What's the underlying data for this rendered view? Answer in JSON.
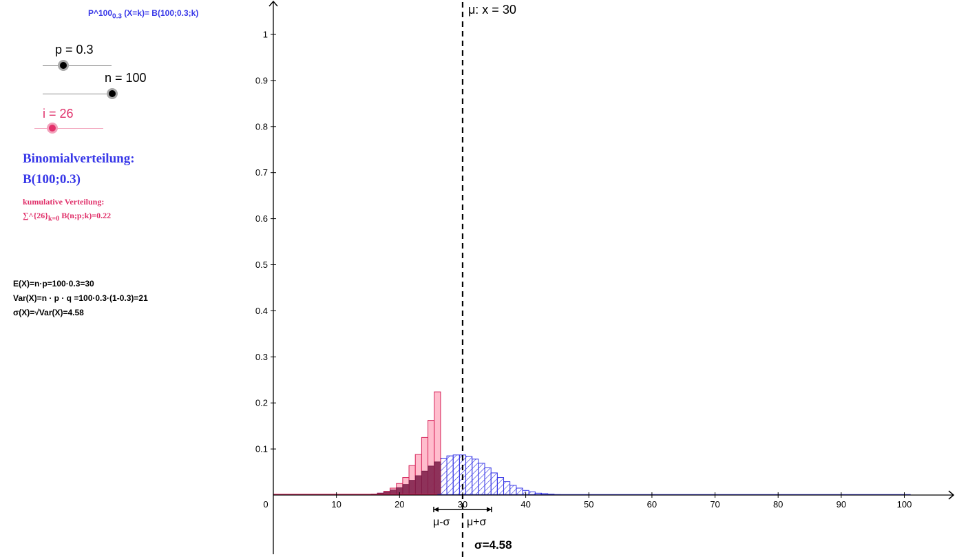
{
  "formula": {
    "main": "P^100",
    "sub": "0.3",
    "rest": " (X=k)= B(100;0.3;k)"
  },
  "sliders": {
    "p": {
      "label": "p = 0.3",
      "value": 0.3,
      "min": 0,
      "max": 1
    },
    "n": {
      "label": "n = 100",
      "value": 100,
      "min": 0,
      "max": 100
    },
    "i": {
      "label": "i = 26",
      "value": 26,
      "min": 0,
      "max": 100
    }
  },
  "distribution": {
    "title": "Binomialverteilung:",
    "name": "B(100;0.3)"
  },
  "cumulative": {
    "label": "kumulative Verteilung:",
    "sum_main": "∑^{26}",
    "sum_sub": "k=0",
    "sum_rest": " B(n;p;k)=0.22"
  },
  "stats": {
    "expectation": "E(X)=n·p=100·0.3=30",
    "variance": "Var(X)=n · p · q =100·0.3·(1-0.3)=21",
    "sigma": "σ(X)=√Var(X)=4.58"
  },
  "chart_data": {
    "type": "bar",
    "x_ticks": [
      0,
      10,
      20,
      30,
      40,
      50,
      60,
      70,
      80,
      90,
      100
    ],
    "y_ticks": [
      0.1,
      0.2,
      0.3,
      0.4,
      0.5,
      0.6,
      0.7,
      0.8,
      0.9,
      1
    ],
    "x_tick_labels": [
      "0",
      "10",
      "20",
      "30",
      "40",
      "50",
      "60",
      "70",
      "80",
      "90",
      "100"
    ],
    "y_tick_labels": [
      "0.1",
      "0.2",
      "0.3",
      "0.4",
      "0.5",
      "0.6",
      "0.7",
      "0.8",
      "0.9",
      "1"
    ],
    "xlim": [
      0,
      108
    ],
    "ylim": [
      0,
      1.07
    ],
    "n": 100,
    "p": 0.3,
    "cumulative_upper": 26,
    "series": [
      {
        "values_by_k": {
          "16": 0.002,
          "17": 0.004,
          "18": 0.007,
          "19": 0.011,
          "20": 0.016,
          "21": 0.023,
          "22": 0.032,
          "23": 0.042,
          "24": 0.052,
          "25": 0.063,
          "26": 0.072,
          "27": 0.08,
          "28": 0.085,
          "29": 0.087,
          "30": 0.087,
          "31": 0.084,
          "32": 0.078,
          "33": 0.069,
          "34": 0.059,
          "35": 0.048,
          "36": 0.038,
          "37": 0.029,
          "38": 0.021,
          "39": 0.015,
          "40": 0.01,
          "41": 0.007,
          "42": 0.004,
          "43": 0.003,
          "44": 0.002,
          "45": 0.001
        }
      },
      {
        "values_by_k": {
          "16": 0.002,
          "17": 0.004,
          "18": 0.008,
          "19": 0.015,
          "20": 0.025,
          "21": 0.038,
          "22": 0.064,
          "23": 0.088,
          "24": 0.125,
          "25": 0.162,
          "26": 0.224
        }
      }
    ],
    "annotations": {
      "mean_label": "μ: x = 30",
      "mean": 30,
      "sigma": 4.58,
      "minus_label": "μ-σ",
      "plus_label": "μ+σ",
      "sigma_label": "σ=4.58"
    },
    "colors": {
      "pmf": "#3535e6",
      "cdf_fill": "#ffb6c8",
      "cdf_stroke": "#d6245a",
      "overlap": "#7a1a45",
      "axis": "#000000"
    }
  }
}
